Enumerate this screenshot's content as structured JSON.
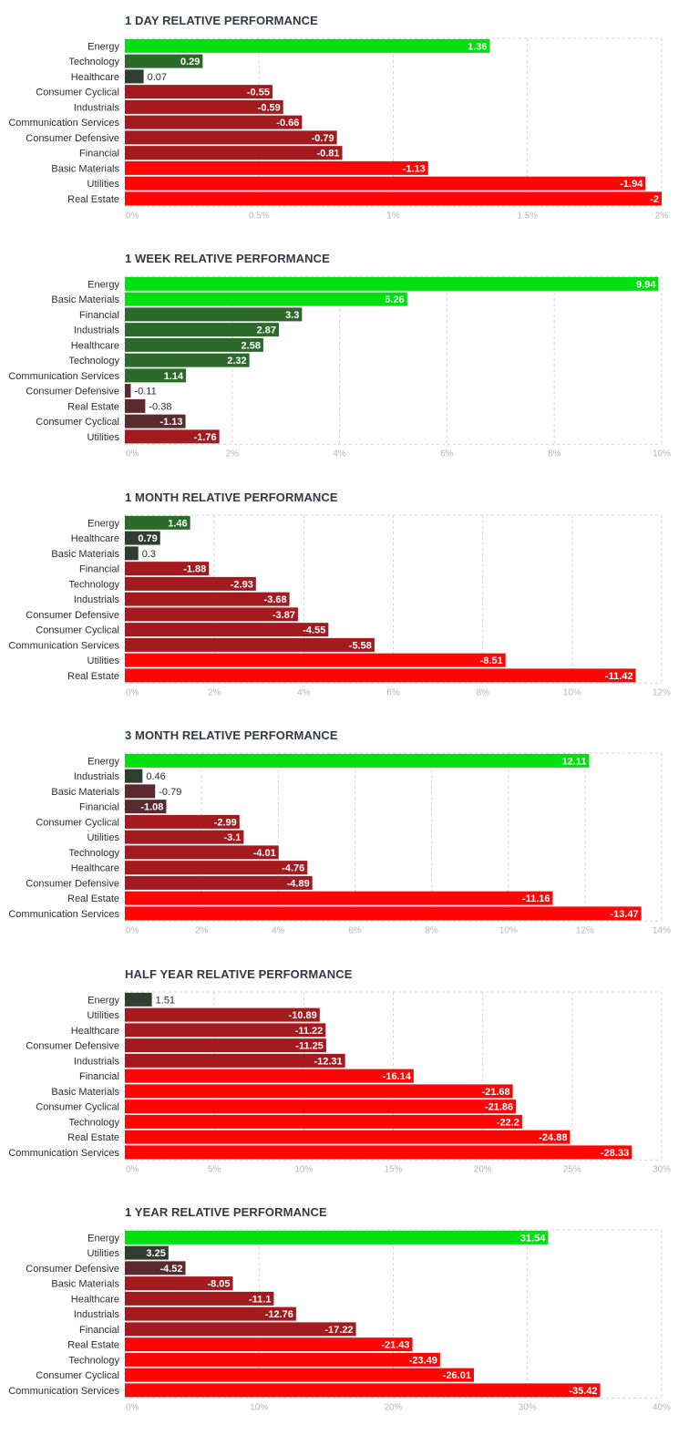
{
  "chart_data": [
    {
      "type": "bar",
      "orientation": "horizontal",
      "title": "1 DAY RELATIVE PERFORMANCE",
      "categories": [
        "Energy",
        "Technology",
        "Healthcare",
        "Consumer Cyclical",
        "Industrials",
        "Communication Services",
        "Consumer Defensive",
        "Financial",
        "Basic Materials",
        "Utilities",
        "Real Estate"
      ],
      "values": [
        1.36,
        0.29,
        0.07,
        -0.55,
        -0.59,
        -0.66,
        -0.79,
        -0.81,
        -1.13,
        -1.94,
        -2
      ],
      "value_labels": [
        "1.36",
        "0.29",
        "0.07",
        "-0.55",
        "-0.59",
        "-0.66",
        "-0.79",
        "-0.81",
        "-1.13",
        "-1.94",
        "-2"
      ],
      "xlim": [
        0,
        2
      ],
      "ticks": [
        0,
        0.5,
        1,
        1.5,
        2
      ],
      "tick_labels": [
        "0%",
        "0.5%",
        "1%",
        "1.5%",
        "2%"
      ],
      "bar_magnitude": "absolute value",
      "grid": true,
      "colors": {
        "positive_strong": "#00e010",
        "positive_mid": "#2c6a2c",
        "positive_weak": "#2f3e30",
        "negative_weak": "#5a2a2e",
        "negative_mid": "#a31a1f",
        "negative_strong": "#ff0606"
      }
    },
    {
      "type": "bar",
      "orientation": "horizontal",
      "title": "1 WEEK RELATIVE PERFORMANCE",
      "categories": [
        "Energy",
        "Basic Materials",
        "Financial",
        "Industrials",
        "Healthcare",
        "Technology",
        "Communication Services",
        "Consumer Defensive",
        "Real Estate",
        "Consumer Cyclical",
        "Utilities"
      ],
      "values": [
        9.94,
        5.26,
        3.3,
        2.87,
        2.58,
        2.32,
        1.14,
        -0.11,
        -0.38,
        -1.13,
        -1.76
      ],
      "value_labels": [
        "9.94",
        "5.26",
        "3.3",
        "2.87",
        "2.58",
        "2.32",
        "1.14",
        "-0.11",
        "-0.38",
        "-1.13",
        "-1.76"
      ],
      "xlim": [
        0,
        10
      ],
      "ticks": [
        0,
        2,
        4,
        6,
        8,
        10
      ],
      "tick_labels": [
        "0%",
        "2%",
        "4%",
        "6%",
        "8%",
        "10%"
      ],
      "bar_magnitude": "absolute value",
      "grid": true
    },
    {
      "type": "bar",
      "orientation": "horizontal",
      "title": "1 MONTH RELATIVE PERFORMANCE",
      "categories": [
        "Energy",
        "Healthcare",
        "Basic Materials",
        "Financial",
        "Technology",
        "Industrials",
        "Consumer Defensive",
        "Consumer Cyclical",
        "Communication Services",
        "Utilities",
        "Real Estate"
      ],
      "values": [
        1.46,
        0.79,
        0.3,
        -1.88,
        -2.93,
        -3.68,
        -3.87,
        -4.55,
        -5.58,
        -8.51,
        -11.42
      ],
      "value_labels": [
        "1.46",
        "0.79",
        "0.3",
        "-1.88",
        "-2.93",
        "-3.68",
        "-3.87",
        "-4.55",
        "-5.58",
        "-8.51",
        "-11.42"
      ],
      "xlim": [
        0,
        12
      ],
      "ticks": [
        0,
        2,
        4,
        6,
        8,
        10,
        12
      ],
      "tick_labels": [
        "0%",
        "2%",
        "4%",
        "6%",
        "8%",
        "10%",
        "12%"
      ],
      "bar_magnitude": "absolute value",
      "grid": true
    },
    {
      "type": "bar",
      "orientation": "horizontal",
      "title": "3 MONTH RELATIVE PERFORMANCE",
      "categories": [
        "Energy",
        "Industrials",
        "Basic Materials",
        "Financial",
        "Consumer Cyclical",
        "Utilities",
        "Technology",
        "Healthcare",
        "Consumer Defensive",
        "Real Estate",
        "Communication Services"
      ],
      "values": [
        12.11,
        0.46,
        -0.79,
        -1.08,
        -2.99,
        -3.1,
        -4.01,
        -4.76,
        -4.89,
        -11.16,
        -13.47
      ],
      "value_labels": [
        "12.11",
        "0.46",
        "-0.79",
        "-1.08",
        "-2.99",
        "-3.1",
        "-4.01",
        "-4.76",
        "-4.89",
        "-11.16",
        "-13.47"
      ],
      "xlim": [
        0,
        14
      ],
      "ticks": [
        0,
        2,
        4,
        6,
        8,
        10,
        12,
        14
      ],
      "tick_labels": [
        "0%",
        "2%",
        "4%",
        "6%",
        "8%",
        "10%",
        "12%",
        "14%"
      ],
      "bar_magnitude": "absolute value",
      "grid": true
    },
    {
      "type": "bar",
      "orientation": "horizontal",
      "title": "HALF YEAR RELATIVE PERFORMANCE",
      "categories": [
        "Energy",
        "Utilities",
        "Healthcare",
        "Consumer Defensive",
        "Industrials",
        "Financial",
        "Basic Materials",
        "Consumer Cyclical",
        "Technology",
        "Real Estate",
        "Communication Services"
      ],
      "values": [
        1.51,
        -10.89,
        -11.22,
        -11.25,
        -12.31,
        -16.14,
        -21.68,
        -21.86,
        -22.2,
        -24.88,
        -28.33
      ],
      "value_labels": [
        "1.51",
        "-10.89",
        "-11.22",
        "-11.25",
        "-12.31",
        "-16.14",
        "-21.68",
        "-21.86",
        "-22.2",
        "-24.88",
        "-28.33"
      ],
      "xlim": [
        0,
        30
      ],
      "ticks": [
        0,
        5,
        10,
        15,
        20,
        25,
        30
      ],
      "tick_labels": [
        "0%",
        "5%",
        "10%",
        "15%",
        "20%",
        "25%",
        "30%"
      ],
      "bar_magnitude": "absolute value",
      "grid": true
    },
    {
      "type": "bar",
      "orientation": "horizontal",
      "title": "1 YEAR RELATIVE PERFORMANCE",
      "categories": [
        "Energy",
        "Utilities",
        "Consumer Defensive",
        "Basic Materials",
        "Healthcare",
        "Industrials",
        "Financial",
        "Real Estate",
        "Technology",
        "Consumer Cyclical",
        "Communication Services"
      ],
      "values": [
        31.54,
        3.25,
        -4.52,
        -8.05,
        -11.1,
        -12.76,
        -17.22,
        -21.43,
        -23.49,
        -26.01,
        -35.42
      ],
      "value_labels": [
        "31.54",
        "3.25",
        "-4.52",
        "-8.05",
        "-11.1",
        "-12.76",
        "-17.22",
        "-21.43",
        "-23.49",
        "-26.01",
        "-35.42"
      ],
      "xlim": [
        0,
        40
      ],
      "ticks": [
        0,
        10,
        20,
        30,
        40
      ],
      "tick_labels": [
        "0%",
        "10%",
        "20%",
        "30%",
        "40%"
      ],
      "bar_magnitude": "absolute value",
      "grid": true
    }
  ]
}
